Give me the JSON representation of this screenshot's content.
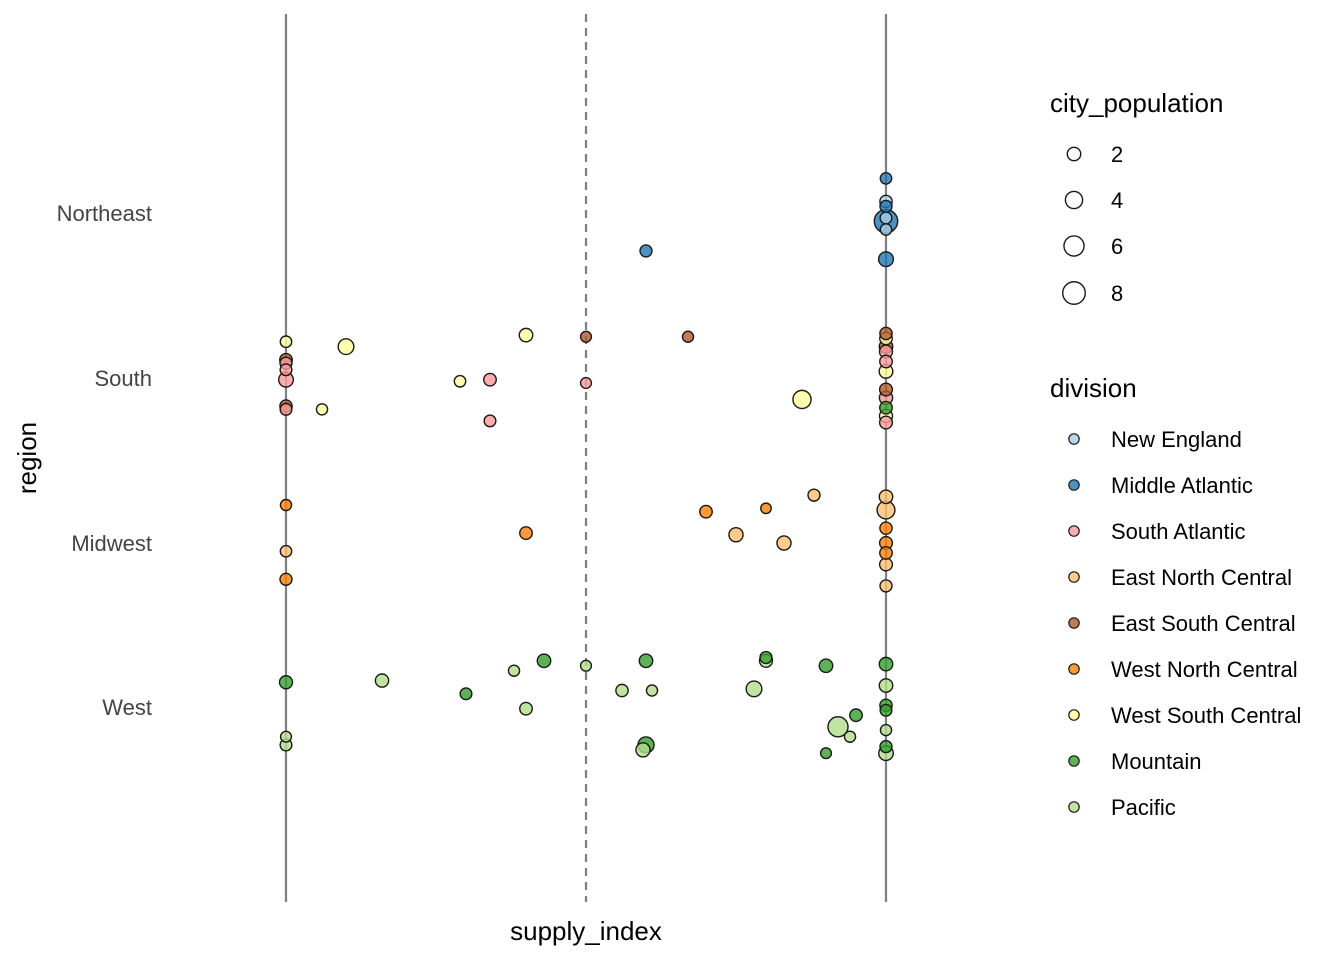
{
  "chart_data": {
    "type": "scatter",
    "title": "",
    "xlabel": "supply_index",
    "ylabel": "region",
    "xlim": [
      -0.05,
      1.05
    ],
    "ylim": [
      0,
      1
    ],
    "grid": false,
    "y_categories": [
      "Northeast",
      "South",
      "Midwest",
      "West"
    ],
    "reference_lines": [
      {
        "x": 0.0,
        "style": "solid"
      },
      {
        "x": 0.5,
        "style": "dashed"
      },
      {
        "x": 1.0,
        "style": "solid"
      }
    ],
    "colors": {
      "New England": "#a6cee3",
      "Middle Atlantic": "#1f78b4",
      "South Atlantic": "#fb9a99",
      "East North Central": "#fdbf6f",
      "East South Central": "#b15928",
      "West North Central": "#ff7f00",
      "West South Central": "#ffff99",
      "Mountain": "#33a02c",
      "Pacific": "#b2df8a"
    },
    "legend": {
      "placement": "right",
      "size_title": "city_population",
      "size_breaks": [
        2,
        4,
        6,
        8
      ],
      "color_title": "division",
      "color_entries": [
        "New England",
        "Middle Atlantic",
        "South Atlantic",
        "East North Central",
        "East South Central",
        "West North Central",
        "West South Central",
        "Mountain",
        "Pacific"
      ]
    },
    "points": [
      {
        "x": 1.0,
        "region": "Northeast",
        "dy": 0.21,
        "division": "Middle Atlantic",
        "pop": 1.2
      },
      {
        "x": 1.0,
        "region": "Northeast",
        "dy": 0.07,
        "division": "New England",
        "pop": 1.5
      },
      {
        "x": 1.0,
        "region": "Northeast",
        "dy": 0.04,
        "division": "Middle Atlantic",
        "pop": 1.4
      },
      {
        "x": 1.0,
        "region": "Northeast",
        "dy": -0.05,
        "division": "Middle Atlantic",
        "pop": 8.8
      },
      {
        "x": 1.0,
        "region": "Northeast",
        "dy": -0.03,
        "division": "New England",
        "pop": 1.3
      },
      {
        "x": 1.0,
        "region": "Northeast",
        "dy": -0.1,
        "division": "New England",
        "pop": 1.2
      },
      {
        "x": 1.0,
        "region": "Northeast",
        "dy": -0.28,
        "division": "Middle Atlantic",
        "pop": 2.6
      },
      {
        "x": 0.6,
        "region": "Northeast",
        "dy": -0.23,
        "division": "Middle Atlantic",
        "pop": 1.4
      },
      {
        "x": 0.0,
        "region": "South",
        "dy": 0.22,
        "division": "West South Central",
        "pop": 1.2
      },
      {
        "x": 0.0,
        "region": "South",
        "dy": 0.11,
        "division": "East South Central",
        "pop": 1.6
      },
      {
        "x": 0.0,
        "region": "South",
        "dy": 0.05,
        "division": "South Atlantic",
        "pop": 1.3
      },
      {
        "x": 0.0,
        "region": "South",
        "dy": 0.09,
        "division": "South Atlantic",
        "pop": 1.4
      },
      {
        "x": 0.0,
        "region": "South",
        "dy": -0.01,
        "division": "South Atlantic",
        "pop": 2.6
      },
      {
        "x": 0.0,
        "region": "South",
        "dy": -0.17,
        "division": "East South Central",
        "pop": 1.5
      },
      {
        "x": 0.0,
        "region": "South",
        "dy": -0.19,
        "division": "South Atlantic",
        "pop": 1.3
      },
      {
        "x": 0.06,
        "region": "South",
        "dy": -0.19,
        "division": "West South Central",
        "pop": 1.1
      },
      {
        "x": 0.1,
        "region": "South",
        "dy": 0.19,
        "division": "West South Central",
        "pop": 3.1
      },
      {
        "x": 0.29,
        "region": "South",
        "dy": -0.02,
        "division": "West South Central",
        "pop": 1.2
      },
      {
        "x": 0.34,
        "region": "South",
        "dy": -0.01,
        "division": "South Atlantic",
        "pop": 1.6
      },
      {
        "x": 0.34,
        "region": "South",
        "dy": -0.26,
        "division": "South Atlantic",
        "pop": 1.3
      },
      {
        "x": 0.4,
        "region": "South",
        "dy": 0.26,
        "division": "West South Central",
        "pop": 2.0
      },
      {
        "x": 0.5,
        "region": "South",
        "dy": 0.25,
        "division": "East South Central",
        "pop": 1.0
      },
      {
        "x": 0.5,
        "region": "South",
        "dy": -0.03,
        "division": "South Atlantic",
        "pop": 1.0
      },
      {
        "x": 0.67,
        "region": "South",
        "dy": 0.25,
        "division": "East South Central",
        "pop": 1.1
      },
      {
        "x": 0.86,
        "region": "South",
        "dy": -0.13,
        "division": "West South Central",
        "pop": 4.6
      },
      {
        "x": 1.0,
        "region": "South",
        "dy": 0.27,
        "division": "East South Central",
        "pop": 1.5
      },
      {
        "x": 1.0,
        "region": "South",
        "dy": 0.24,
        "division": "West South Central",
        "pop": 1.6
      },
      {
        "x": 1.0,
        "region": "South",
        "dy": 0.19,
        "division": "East South Central",
        "pop": 2.0
      },
      {
        "x": 1.0,
        "region": "South",
        "dy": 0.16,
        "division": "South Atlantic",
        "pop": 1.8
      },
      {
        "x": 1.0,
        "region": "South",
        "dy": 0.1,
        "division": "South Atlantic",
        "pop": 1.6
      },
      {
        "x": 1.0,
        "region": "South",
        "dy": 0.04,
        "division": "West South Central",
        "pop": 2.1
      },
      {
        "x": 1.0,
        "region": "South",
        "dy": -0.07,
        "division": "East South Central",
        "pop": 1.7
      },
      {
        "x": 1.0,
        "region": "South",
        "dy": -0.12,
        "division": "South Atlantic",
        "pop": 1.9
      },
      {
        "x": 1.0,
        "region": "South",
        "dy": -0.18,
        "division": "Mountain",
        "pop": 1.6
      },
      {
        "x": 1.0,
        "region": "South",
        "dy": -0.23,
        "division": "West South Central",
        "pop": 1.8
      },
      {
        "x": 1.0,
        "region": "South",
        "dy": -0.27,
        "division": "South Atlantic",
        "pop": 1.7
      },
      {
        "x": 0.0,
        "region": "Midwest",
        "dy": 0.23,
        "division": "West North Central",
        "pop": 1.1
      },
      {
        "x": 0.0,
        "region": "Midwest",
        "dy": -0.05,
        "division": "East North Central",
        "pop": 1.2
      },
      {
        "x": 0.0,
        "region": "Midwest",
        "dy": -0.22,
        "division": "West North Central",
        "pop": 1.4
      },
      {
        "x": 0.4,
        "region": "Midwest",
        "dy": 0.06,
        "division": "West North Central",
        "pop": 1.6
      },
      {
        "x": 0.7,
        "region": "Midwest",
        "dy": 0.19,
        "division": "West North Central",
        "pop": 1.6
      },
      {
        "x": 0.75,
        "region": "Midwest",
        "dy": 0.05,
        "division": "East North Central",
        "pop": 2.3
      },
      {
        "x": 0.8,
        "region": "Midwest",
        "dy": 0.21,
        "division": "West North Central",
        "pop": 0.9
      },
      {
        "x": 0.83,
        "region": "Midwest",
        "dy": 0.0,
        "division": "East North Central",
        "pop": 2.3
      },
      {
        "x": 0.88,
        "region": "Midwest",
        "dy": 0.29,
        "division": "East North Central",
        "pop": 1.4
      },
      {
        "x": 1.0,
        "region": "Midwest",
        "dy": 0.28,
        "division": "East North Central",
        "pop": 2.0
      },
      {
        "x": 1.0,
        "region": "Midwest",
        "dy": 0.2,
        "division": "East North Central",
        "pop": 4.4
      },
      {
        "x": 1.0,
        "region": "Midwest",
        "dy": 0.09,
        "division": "West North Central",
        "pop": 1.5
      },
      {
        "x": 1.0,
        "region": "Midwest",
        "dy": 0.0,
        "division": "West North Central",
        "pop": 1.7
      },
      {
        "x": 1.0,
        "region": "Midwest",
        "dy": -0.06,
        "division": "West North Central",
        "pop": 1.6
      },
      {
        "x": 1.0,
        "region": "Midwest",
        "dy": -0.13,
        "division": "East North Central",
        "pop": 1.7
      },
      {
        "x": 1.0,
        "region": "Midwest",
        "dy": -0.26,
        "division": "East North Central",
        "pop": 1.4
      },
      {
        "x": 0.0,
        "region": "West",
        "dy": 0.15,
        "division": "Mountain",
        "pop": 1.8
      },
      {
        "x": 0.0,
        "region": "West",
        "dy": -0.18,
        "division": "Pacific",
        "pop": 1.0
      },
      {
        "x": 0.0,
        "region": "West",
        "dy": -0.23,
        "division": "Pacific",
        "pop": 1.3
      },
      {
        "x": 0.16,
        "region": "West",
        "dy": 0.16,
        "division": "Pacific",
        "pop": 1.9
      },
      {
        "x": 0.3,
        "region": "West",
        "dy": 0.08,
        "division": "Mountain",
        "pop": 1.3
      },
      {
        "x": 0.38,
        "region": "West",
        "dy": 0.22,
        "division": "Pacific",
        "pop": 1.1
      },
      {
        "x": 0.4,
        "region": "West",
        "dy": -0.01,
        "division": "Pacific",
        "pop": 1.6
      },
      {
        "x": 0.43,
        "region": "West",
        "dy": 0.28,
        "division": "Mountain",
        "pop": 2.0
      },
      {
        "x": 0.5,
        "region": "West",
        "dy": 0.25,
        "division": "Pacific",
        "pop": 1.0
      },
      {
        "x": 0.56,
        "region": "West",
        "dy": 0.1,
        "division": "Pacific",
        "pop": 1.5
      },
      {
        "x": 0.6,
        "region": "West",
        "dy": 0.28,
        "division": "Mountain",
        "pop": 2.0
      },
      {
        "x": 0.6,
        "region": "West",
        "dy": -0.23,
        "division": "Mountain",
        "pop": 3.3
      },
      {
        "x": 0.595,
        "region": "West",
        "dy": -0.26,
        "division": "Pacific",
        "pop": 2.3
      },
      {
        "x": 0.61,
        "region": "West",
        "dy": 0.1,
        "division": "Pacific",
        "pop": 1.1
      },
      {
        "x": 0.78,
        "region": "West",
        "dy": 0.11,
        "division": "Pacific",
        "pop": 3.1
      },
      {
        "x": 0.8,
        "region": "West",
        "dy": 0.3,
        "division": "Mountain",
        "pop": 1.4
      },
      {
        "x": 0.8,
        "region": "West",
        "dy": 0.28,
        "division": "Pacific",
        "pop": 1.8
      },
      {
        "x": 0.9,
        "region": "West",
        "dy": 0.25,
        "division": "Mountain",
        "pop": 2.0
      },
      {
        "x": 0.9,
        "region": "West",
        "dy": -0.28,
        "division": "Mountain",
        "pop": 1.0
      },
      {
        "x": 0.92,
        "region": "West",
        "dy": -0.12,
        "division": "Pacific",
        "pop": 6.0
      },
      {
        "x": 0.94,
        "region": "West",
        "dy": -0.18,
        "division": "Pacific",
        "pop": 1.1
      },
      {
        "x": 0.95,
        "region": "West",
        "dy": -0.05,
        "division": "Mountain",
        "pop": 1.6
      },
      {
        "x": 1.0,
        "region": "West",
        "dy": 0.26,
        "division": "Mountain",
        "pop": 2.0
      },
      {
        "x": 1.0,
        "region": "West",
        "dy": 0.13,
        "division": "Pacific",
        "pop": 2.0
      },
      {
        "x": 1.0,
        "region": "West",
        "dy": 0.01,
        "division": "Mountain",
        "pop": 1.5
      },
      {
        "x": 1.0,
        "region": "West",
        "dy": -0.02,
        "division": "Mountain",
        "pop": 1.3
      },
      {
        "x": 1.0,
        "region": "West",
        "dy": -0.14,
        "division": "Pacific",
        "pop": 1.1
      },
      {
        "x": 1.0,
        "region": "West",
        "dy": -0.24,
        "division": "Mountain",
        "pop": 1.4
      },
      {
        "x": 1.0,
        "region": "West",
        "dy": -0.28,
        "division": "Pacific",
        "pop": 2.5
      }
    ]
  }
}
